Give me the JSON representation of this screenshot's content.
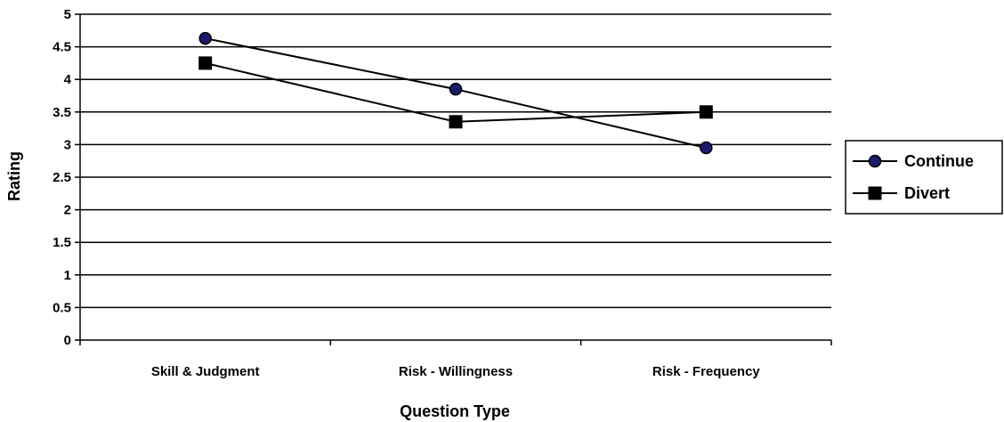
{
  "chart_data": {
    "type": "line",
    "title": "",
    "xlabel": "Question Type",
    "ylabel": "Rating",
    "categories": [
      "Skill & Judgment",
      "Risk - Willingness",
      "Risk - Frequency"
    ],
    "ylim": [
      0,
      5
    ],
    "y_ticks": [
      "0",
      "0.5",
      "1",
      "1.5",
      "2",
      "2.5",
      "3",
      "3.5",
      "4",
      "4.5",
      "5"
    ],
    "grid": true,
    "legend_position": "right",
    "series": [
      {
        "name": "Continue",
        "marker": "circle",
        "marker_color": "#1a1a6e",
        "line_color": "#000000",
        "values": [
          4.63,
          3.85,
          2.95
        ]
      },
      {
        "name": "Divert",
        "marker": "square",
        "marker_color": "#000000",
        "line_color": "#000000",
        "values": [
          4.25,
          3.35,
          3.5
        ]
      }
    ]
  }
}
